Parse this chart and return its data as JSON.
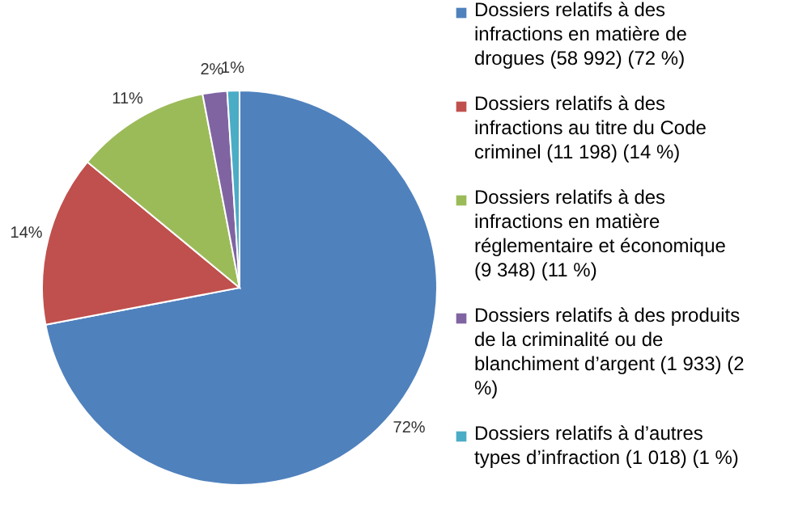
{
  "chart_data": {
    "type": "pie",
    "categories": [
      "Dossiers relatifs à des infractions en matière de drogues (58 992) (72 %)",
      "Dossiers relatifs à des infractions au titre du Code criminel (11 198) (14 %)",
      "Dossiers relatifs à des infractions en matière réglementaire et économique (9 348) (11 %)",
      "Dossiers relatifs à des produits de la criminalité ou de blanchiment d’argent (1 933) (2 %)",
      "Dossiers relatifs à d’autres types d’infraction (1 018) (1 %)"
    ],
    "values": [
      72,
      14,
      11,
      2,
      1
    ],
    "colors": [
      "#4f81bd",
      "#c0504d",
      "#9bbb59",
      "#8064a2",
      "#4bacc6"
    ],
    "value_labels": [
      "72%",
      "14%",
      "11%",
      "2%",
      "1%"
    ],
    "legend": "right"
  }
}
